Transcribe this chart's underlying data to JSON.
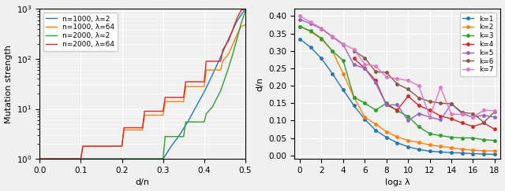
{
  "left": {
    "series": [
      {
        "label": "n=1000, λ=2",
        "color": "#1f77b4",
        "x": [
          0.0,
          0.3,
          0.32,
          0.34,
          0.36,
          0.38,
          0.4,
          0.42,
          0.44,
          0.46,
          0.48,
          0.5
        ],
        "y": [
          1.0,
          1.0,
          1.8,
          3.0,
          5.5,
          11,
          22,
          48,
          110,
          260,
          580,
          1000
        ]
      },
      {
        "label": "n=1000, λ=64",
        "color": "#ff7f0e",
        "x": [
          0.0,
          0.1,
          0.105,
          0.2,
          0.205,
          0.25,
          0.255,
          0.3,
          0.305,
          0.35,
          0.355,
          0.4,
          0.405,
          0.44,
          0.445,
          0.46,
          0.47,
          0.48,
          0.49,
          0.5
        ],
        "y": [
          1.0,
          1.0,
          1.8,
          1.8,
          3.8,
          3.8,
          7.5,
          7.5,
          14,
          14,
          28,
          28,
          60,
          60,
          90,
          130,
          200,
          310,
          450,
          480
        ]
      },
      {
        "label": "n=2000, λ=2",
        "color": "#2ca02c",
        "x": [
          0.0,
          0.3,
          0.305,
          0.35,
          0.355,
          0.4,
          0.405,
          0.42,
          0.43,
          0.44,
          0.45,
          0.46,
          0.47,
          0.48,
          0.49,
          0.5
        ],
        "y": [
          1.0,
          1.0,
          2.8,
          2.8,
          5.5,
          5.5,
          8.0,
          11,
          16,
          23,
          40,
          70,
          130,
          260,
          520,
          900
        ]
      },
      {
        "label": "n=2000, λ=64",
        "color": "#d62728",
        "x": [
          0.0,
          0.1,
          0.105,
          0.2,
          0.205,
          0.25,
          0.255,
          0.3,
          0.305,
          0.35,
          0.355,
          0.4,
          0.405,
          0.44,
          0.445,
          0.46,
          0.47,
          0.48,
          0.49,
          0.5
        ],
        "y": [
          1.0,
          1.0,
          1.8,
          1.8,
          4.2,
          4.2,
          9.0,
          9.0,
          17,
          17,
          35,
          35,
          90,
          90,
          150,
          240,
          400,
          660,
          950,
          1000
        ]
      }
    ],
    "xlabel": "d/n",
    "ylabel": "Mutation strength",
    "xlim": [
      0.0,
      0.5
    ],
    "ylim": [
      1.0,
      1000
    ],
    "yscale": "log"
  },
  "right": {
    "series": [
      {
        "label": "k=1",
        "color": "#1f77b4",
        "marker": "o",
        "x": [
          0,
          1,
          2,
          3,
          4,
          5,
          6,
          7,
          8,
          9,
          10,
          11,
          12,
          13,
          14,
          15,
          16,
          17,
          18
        ],
        "y": [
          0.334,
          0.31,
          0.278,
          0.235,
          0.188,
          0.143,
          0.104,
          0.072,
          0.052,
          0.036,
          0.025,
          0.017,
          0.012,
          0.01,
          0.008,
          0.007,
          0.005,
          0.004,
          0.003
        ]
      },
      {
        "label": "k=2",
        "color": "#ff7f0e",
        "marker": "o",
        "x": [
          0,
          1,
          2,
          3,
          4,
          5,
          6,
          7,
          8,
          9,
          10,
          11,
          12,
          13,
          14,
          15,
          16,
          17,
          18
        ],
        "y": [
          0.37,
          0.355,
          0.334,
          0.3,
          0.235,
          0.167,
          0.11,
          0.09,
          0.068,
          0.053,
          0.043,
          0.037,
          0.03,
          0.026,
          0.022,
          0.018,
          0.015,
          0.013,
          0.013
        ]
      },
      {
        "label": "k=3",
        "color": "#2ca02c",
        "marker": "o",
        "x": [
          0,
          1,
          2,
          3,
          4,
          5,
          6,
          7,
          8,
          9,
          10,
          11,
          12,
          13,
          14,
          15,
          16,
          17,
          18
        ],
        "y": [
          0.37,
          0.357,
          0.336,
          0.3,
          0.272,
          0.167,
          0.15,
          0.13,
          0.15,
          0.128,
          0.112,
          0.082,
          0.062,
          0.057,
          0.052,
          0.05,
          0.05,
          0.045,
          0.043
        ]
      },
      {
        "label": "k=4",
        "color": "#d62728",
        "marker": "o",
        "x": [
          5,
          6,
          7,
          8,
          9,
          10,
          11,
          12,
          13,
          14,
          15,
          16,
          17,
          18
        ],
        "y": [
          0.278,
          0.25,
          0.215,
          0.145,
          0.13,
          0.17,
          0.143,
          0.13,
          0.113,
          0.105,
          0.093,
          0.083,
          0.093,
          0.075
        ]
      },
      {
        "label": "k=5",
        "color": "#9467bd",
        "marker": "o",
        "x": [
          0,
          1,
          2,
          3,
          4,
          5,
          6,
          7,
          8,
          9,
          10,
          11,
          12,
          13,
          14,
          15,
          16,
          17,
          18
        ],
        "y": [
          0.39,
          0.378,
          0.363,
          0.34,
          0.318,
          0.26,
          0.25,
          0.208,
          0.145,
          0.145,
          0.1,
          0.12,
          0.11,
          0.102,
          0.148,
          0.12,
          0.11,
          0.115,
          0.11
        ]
      },
      {
        "label": "k=6",
        "color": "#8c564b",
        "marker": "o",
        "x": [
          5,
          6,
          7,
          8,
          9,
          10,
          11,
          12,
          13,
          14,
          15,
          16,
          17,
          18
        ],
        "y": [
          0.3,
          0.28,
          0.24,
          0.238,
          0.205,
          0.19,
          0.165,
          0.155,
          0.15,
          0.148,
          0.123,
          0.12,
          0.095,
          0.125
        ]
      },
      {
        "label": "k=7",
        "color": "#e377c2",
        "marker": "o",
        "x": [
          0,
          1,
          2,
          3,
          4,
          5,
          6,
          7,
          8,
          9,
          10,
          11,
          12,
          13,
          14,
          15,
          16,
          17,
          18
        ],
        "y": [
          0.4,
          0.382,
          0.365,
          0.342,
          0.32,
          0.304,
          0.262,
          0.256,
          0.225,
          0.22,
          0.215,
          0.2,
          0.11,
          0.195,
          0.118,
          0.118,
          0.11,
          0.13,
          0.128
        ]
      }
    ],
    "xlabel": "log₂ λ",
    "ylabel": "d/n",
    "xlim": [
      -0.5,
      18.5
    ],
    "ylim": [
      -0.01,
      0.42
    ],
    "xticks": [
      0,
      2,
      4,
      6,
      8,
      10,
      12,
      14,
      16,
      18
    ],
    "yticks": [
      0.0,
      0.05,
      0.1,
      0.15,
      0.2,
      0.25,
      0.3,
      0.35,
      0.4
    ]
  },
  "bg_color": "#f0f0f0"
}
